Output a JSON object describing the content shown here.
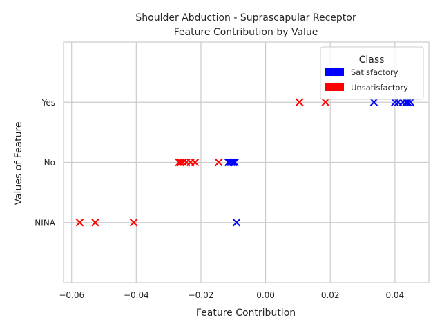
{
  "chart_data": {
    "type": "scatter",
    "title": "Shoulder Abduction - Suprascapular Receptor",
    "subtitle": "Feature Contribution by Value",
    "xlabel": "Feature Contribution",
    "ylabel": "Values of Feature",
    "xlim": [
      -0.0625,
      0.0505
    ],
    "y_categories": [
      "NINA",
      "No",
      "Yes"
    ],
    "ylim": [
      -1.0,
      3.0
    ],
    "x_ticks": [
      -0.06,
      -0.04,
      -0.02,
      0.0,
      0.02,
      0.04
    ],
    "x_tick_labels": [
      "−0.06",
      "−0.04",
      "−0.02",
      "0.00",
      "0.02",
      "0.04"
    ],
    "grid": true,
    "marker": "x",
    "legend": {
      "title": "Class",
      "placement": "top-right",
      "entries": [
        {
          "label": "Satisfactory",
          "color": "#0000ff"
        },
        {
          "label": "Unsatisfactory",
          "color": "#ff0000"
        }
      ]
    },
    "series": [
      {
        "name": "Satisfactory",
        "color": "#0000ff",
        "points": [
          {
            "x": 0.0335,
            "y": "Yes"
          },
          {
            "x": 0.04,
            "y": "Yes"
          },
          {
            "x": 0.041,
            "y": "Yes"
          },
          {
            "x": 0.0425,
            "y": "Yes"
          },
          {
            "x": 0.0435,
            "y": "Yes"
          },
          {
            "x": 0.044,
            "y": "Yes"
          },
          {
            "x": 0.0448,
            "y": "Yes"
          },
          {
            "x": -0.0115,
            "y": "No"
          },
          {
            "x": -0.011,
            "y": "No"
          },
          {
            "x": -0.0105,
            "y": "No"
          },
          {
            "x": -0.01,
            "y": "No"
          },
          {
            "x": -0.0095,
            "y": "No"
          },
          {
            "x": -0.009,
            "y": "NINA"
          }
        ]
      },
      {
        "name": "Unsatisfactory",
        "color": "#ff0000",
        "points": [
          {
            "x": 0.0105,
            "y": "Yes"
          },
          {
            "x": 0.0185,
            "y": "Yes"
          },
          {
            "x": -0.0268,
            "y": "No"
          },
          {
            "x": -0.0262,
            "y": "No"
          },
          {
            "x": -0.0255,
            "y": "No"
          },
          {
            "x": -0.0245,
            "y": "No"
          },
          {
            "x": -0.0232,
            "y": "No"
          },
          {
            "x": -0.0218,
            "y": "No"
          },
          {
            "x": -0.0145,
            "y": "No"
          },
          {
            "x": -0.0575,
            "y": "NINA"
          },
          {
            "x": -0.0527,
            "y": "NINA"
          },
          {
            "x": -0.0408,
            "y": "NINA"
          }
        ]
      }
    ]
  }
}
